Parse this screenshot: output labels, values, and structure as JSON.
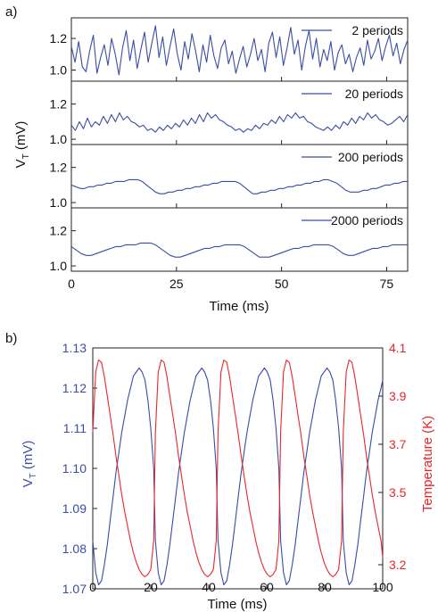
{
  "colors": {
    "blue": "#3a4da6",
    "red": "#e8262a",
    "axis": "#222222"
  },
  "chart_data": [
    {
      "panel_label": "a)",
      "type": "line",
      "xlabel": "Time (ms)",
      "ylabel_main": "V",
      "ylabel_sub": "T",
      "ylabel_rest": " (mV)",
      "xlim": [
        0,
        80
      ],
      "xticks": [
        0,
        25,
        50,
        75
      ],
      "subplots": [
        {
          "label": "2 periods",
          "ylim": [
            0.93,
            1.33
          ],
          "yticks": [
            1.0,
            1.2
          ],
          "series": {
            "name": "2 periods",
            "values": [
              1.15,
              1.05,
              1.18,
              1.02,
              0.99,
              1.12,
              1.22,
              0.98,
              1.08,
              1.16,
              1.03,
              1.2,
              1.1,
              0.97,
              1.14,
              1.25,
              1.06,
              1.19,
              1.01,
              1.13,
              1.24,
              1.05,
              1.17,
              1.28,
              1.08,
              1.21,
              1.03,
              1.15,
              1.26,
              1.1,
              1.0,
              1.18,
              1.07,
              1.23,
              1.12,
              0.99,
              1.16,
              1.05,
              1.22,
              1.09,
              1.01,
              1.14,
              1.19,
              1.04,
              1.12,
              0.98,
              1.07,
              1.15,
              1.02,
              1.1,
              1.2,
              1.06,
              1.13,
              0.99,
              1.17,
              1.24,
              1.08,
              1.21,
              1.03,
              1.14,
              1.27,
              1.1,
              1.19,
              1.0,
              1.15,
              1.25,
              1.07,
              1.2,
              1.02,
              1.13,
              1.06,
              1.18,
              1.0,
              1.11,
              1.16,
              1.04,
              1.1,
              0.99,
              1.08,
              1.14,
              1.03,
              1.19,
              1.07,
              1.12,
              1.2,
              1.06,
              1.15,
              1.22,
              1.09,
              1.17,
              1.04,
              1.13,
              1.19
            ]
          }
        },
        {
          "label": "20 periods",
          "ylim": [
            0.97,
            1.33
          ],
          "yticks": [
            1.0,
            1.2
          ],
          "series": {
            "name": "20 periods",
            "values": [
              1.08,
              1.05,
              1.1,
              1.06,
              1.12,
              1.07,
              1.1,
              1.08,
              1.13,
              1.09,
              1.14,
              1.1,
              1.15,
              1.11,
              1.13,
              1.1,
              1.09,
              1.07,
              1.08,
              1.05,
              1.06,
              1.04,
              1.07,
              1.05,
              1.08,
              1.06,
              1.09,
              1.07,
              1.11,
              1.08,
              1.12,
              1.09,
              1.14,
              1.1,
              1.15,
              1.12,
              1.14,
              1.11,
              1.1,
              1.08,
              1.07,
              1.05,
              1.06,
              1.04,
              1.06,
              1.05,
              1.08,
              1.06,
              1.09,
              1.08,
              1.11,
              1.09,
              1.13,
              1.1,
              1.14,
              1.12,
              1.15,
              1.12,
              1.13,
              1.1,
              1.09,
              1.07,
              1.06,
              1.05,
              1.07,
              1.05,
              1.08,
              1.06,
              1.1,
              1.08,
              1.12,
              1.09,
              1.13,
              1.11,
              1.15,
              1.12,
              1.14,
              1.11,
              1.1,
              1.08,
              1.09,
              1.11,
              1.13,
              1.1,
              1.14
            ]
          }
        },
        {
          "label": "200 periods",
          "ylim": [
            0.97,
            1.33
          ],
          "yticks": [
            1.0,
            1.2
          ],
          "series": {
            "name": "200 periods",
            "values": [
              1.1,
              1.09,
              1.08,
              1.08,
              1.09,
              1.09,
              1.1,
              1.1,
              1.11,
              1.11,
              1.12,
              1.12,
              1.12,
              1.13,
              1.13,
              1.13,
              1.12,
              1.1,
              1.08,
              1.06,
              1.05,
              1.05,
              1.06,
              1.06,
              1.07,
              1.07,
              1.08,
              1.08,
              1.09,
              1.09,
              1.1,
              1.1,
              1.11,
              1.11,
              1.12,
              1.12,
              1.12,
              1.12,
              1.11,
              1.09,
              1.07,
              1.05,
              1.05,
              1.06,
              1.06,
              1.07,
              1.07,
              1.08,
              1.08,
              1.09,
              1.09,
              1.1,
              1.1,
              1.11,
              1.11,
              1.12,
              1.12,
              1.13,
              1.13,
              1.12,
              1.11,
              1.09,
              1.07,
              1.06,
              1.06,
              1.06,
              1.07,
              1.07,
              1.08,
              1.08,
              1.09,
              1.1,
              1.1,
              1.11,
              1.11,
              1.12,
              1.12
            ]
          }
        },
        {
          "label": "2000 periods",
          "ylim": [
            0.97,
            1.33
          ],
          "yticks": [
            1.0,
            1.2
          ],
          "series": {
            "name": "2000 periods",
            "values": [
              1.11,
              1.09,
              1.07,
              1.06,
              1.06,
              1.07,
              1.08,
              1.09,
              1.1,
              1.11,
              1.11,
              1.12,
              1.12,
              1.12,
              1.13,
              1.13,
              1.13,
              1.12,
              1.1,
              1.08,
              1.06,
              1.05,
              1.05,
              1.06,
              1.07,
              1.08,
              1.09,
              1.1,
              1.1,
              1.11,
              1.11,
              1.12,
              1.12,
              1.12,
              1.12,
              1.11,
              1.09,
              1.07,
              1.05,
              1.05,
              1.05,
              1.06,
              1.07,
              1.08,
              1.09,
              1.1,
              1.1,
              1.11,
              1.11,
              1.12,
              1.12,
              1.12,
              1.12,
              1.11,
              1.09,
              1.07,
              1.06,
              1.06,
              1.07,
              1.08,
              1.09,
              1.1,
              1.1,
              1.11,
              1.11,
              1.12,
              1.12,
              1.12,
              1.12
            ]
          }
        }
      ]
    },
    {
      "panel_label": "b)",
      "type": "line",
      "xlabel": "Time (ms)",
      "ylabel_left_main": "V",
      "ylabel_left_sub": "T",
      "ylabel_left_rest": " (mV)",
      "ylabel_right": "Temperature (K)",
      "xlim": [
        0,
        100
      ],
      "xticks": [
        0,
        20,
        40,
        60,
        80,
        100
      ],
      "ylim_left": [
        1.07,
        1.13
      ],
      "yticks_left": [
        1.07,
        1.08,
        1.09,
        1.1,
        1.11,
        1.12,
        1.13
      ],
      "yticklabels_left": [
        "1.07",
        "1.08",
        "1.09",
        "1.10",
        "1.11",
        "1.12",
        "1.13"
      ],
      "ylim_right": [
        3.1,
        4.1
      ],
      "yticks_right": [
        3.2,
        3.5,
        3.7,
        3.9,
        4.1
      ],
      "period_ms": 21.6,
      "series": [
        {
          "axis": "left",
          "x": [
            0.0,
            1.0,
            2.0,
            3.0,
            4.0,
            5.0,
            6.0,
            7.0,
            8.0,
            9.0,
            10.0,
            11.0,
            12.0,
            13.0,
            14.0,
            15.0,
            16.0,
            17.0,
            18.0,
            19.0,
            20.0,
            21.0,
            21.6,
            22.6,
            23.6,
            24.6,
            25.6,
            26.6,
            27.6,
            28.6,
            29.6,
            30.6,
            31.6,
            32.6,
            33.6,
            34.6,
            35.6,
            36.6,
            37.6,
            38.6,
            39.6,
            40.6,
            41.6,
            42.6,
            43.2,
            44.2,
            45.2,
            46.2,
            47.2,
            48.2,
            49.2,
            50.2,
            51.2,
            52.2,
            53.2,
            54.2,
            55.2,
            56.2,
            57.2,
            58.2,
            59.2,
            60.2,
            61.2,
            62.2,
            63.2,
            64.2,
            64.8,
            65.8,
            66.8,
            67.8,
            68.8,
            69.8,
            70.8,
            71.8,
            72.8,
            73.8,
            74.8,
            75.8,
            76.8,
            77.8,
            78.8,
            79.8,
            80.8,
            81.8,
            82.8,
            83.8,
            84.8,
            85.8,
            86.4,
            87.4,
            88.4,
            89.4,
            90.4,
            91.4,
            92.4,
            93.4,
            94.4,
            95.4,
            96.4,
            97.4,
            98.4,
            99.4,
            100.0
          ],
          "values": [
            1.082,
            1.074,
            1.071,
            1.072,
            1.076,
            1.081,
            1.087,
            1.093,
            1.099,
            1.104,
            1.109,
            1.113,
            1.117,
            1.12,
            1.123,
            1.124,
            1.125,
            1.124,
            1.122,
            1.117,
            1.11,
            1.1,
            1.082,
            1.074,
            1.071,
            1.072,
            1.076,
            1.081,
            1.087,
            1.093,
            1.099,
            1.104,
            1.109,
            1.113,
            1.117,
            1.12,
            1.123,
            1.124,
            1.125,
            1.124,
            1.122,
            1.117,
            1.11,
            1.1,
            1.082,
            1.074,
            1.071,
            1.072,
            1.076,
            1.081,
            1.087,
            1.093,
            1.099,
            1.104,
            1.109,
            1.113,
            1.117,
            1.12,
            1.123,
            1.124,
            1.125,
            1.124,
            1.122,
            1.117,
            1.11,
            1.1,
            1.082,
            1.074,
            1.071,
            1.072,
            1.076,
            1.081,
            1.087,
            1.093,
            1.099,
            1.104,
            1.109,
            1.113,
            1.117,
            1.12,
            1.123,
            1.124,
            1.125,
            1.124,
            1.122,
            1.117,
            1.11,
            1.1,
            1.082,
            1.074,
            1.071,
            1.072,
            1.076,
            1.081,
            1.087,
            1.093,
            1.099,
            1.104,
            1.109,
            1.113,
            1.117,
            1.12,
            1.122
          ]
        },
        {
          "axis": "right",
          "x": [
            0.0,
            1.0,
            2.0,
            3.0,
            4.0,
            5.0,
            6.0,
            7.0,
            8.0,
            9.0,
            10.0,
            11.0,
            12.0,
            13.0,
            14.0,
            15.0,
            16.0,
            17.0,
            18.0,
            19.0,
            20.0,
            21.0,
            21.6,
            22.6,
            23.6,
            24.6,
            25.6,
            26.6,
            27.6,
            28.6,
            29.6,
            30.6,
            31.6,
            32.6,
            33.6,
            34.6,
            35.6,
            36.6,
            37.6,
            38.6,
            39.6,
            40.6,
            41.6,
            42.6,
            43.2,
            44.2,
            45.2,
            46.2,
            47.2,
            48.2,
            49.2,
            50.2,
            51.2,
            52.2,
            53.2,
            54.2,
            55.2,
            56.2,
            57.2,
            58.2,
            59.2,
            60.2,
            61.2,
            62.2,
            63.2,
            64.2,
            64.8,
            65.8,
            66.8,
            67.8,
            68.8,
            69.8,
            70.8,
            71.8,
            72.8,
            73.8,
            74.8,
            75.8,
            76.8,
            77.8,
            78.8,
            79.8,
            80.8,
            81.8,
            82.8,
            83.8,
            84.8,
            85.8,
            86.4,
            87.4,
            88.4,
            89.4,
            90.4,
            91.4,
            92.4,
            93.4,
            94.4,
            95.4,
            96.4,
            97.4,
            98.4,
            99.4,
            100.0
          ],
          "values": [
            3.75,
            4.0,
            4.05,
            4.04,
            3.98,
            3.9,
            3.82,
            3.74,
            3.65,
            3.57,
            3.49,
            3.42,
            3.36,
            3.3,
            3.25,
            3.21,
            3.18,
            3.16,
            3.15,
            3.16,
            3.18,
            3.3,
            3.75,
            4.0,
            4.05,
            4.04,
            3.98,
            3.9,
            3.82,
            3.74,
            3.65,
            3.57,
            3.49,
            3.42,
            3.36,
            3.3,
            3.25,
            3.21,
            3.18,
            3.16,
            3.15,
            3.16,
            3.18,
            3.3,
            3.75,
            4.0,
            4.05,
            4.04,
            3.98,
            3.9,
            3.82,
            3.74,
            3.65,
            3.57,
            3.49,
            3.42,
            3.36,
            3.3,
            3.25,
            3.21,
            3.18,
            3.16,
            3.15,
            3.16,
            3.18,
            3.3,
            3.75,
            4.0,
            4.05,
            4.04,
            3.98,
            3.9,
            3.82,
            3.74,
            3.65,
            3.57,
            3.49,
            3.42,
            3.36,
            3.3,
            3.25,
            3.21,
            3.18,
            3.16,
            3.15,
            3.16,
            3.18,
            3.3,
            3.75,
            4.0,
            4.05,
            4.04,
            3.98,
            3.9,
            3.82,
            3.74,
            3.65,
            3.57,
            3.49,
            3.42,
            3.36,
            3.3,
            3.23
          ]
        }
      ]
    }
  ]
}
